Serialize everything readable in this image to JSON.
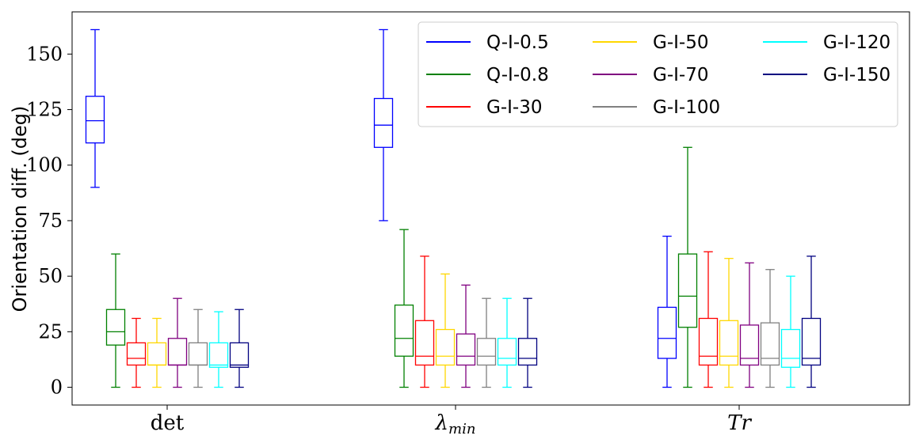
{
  "chart_data": {
    "type": "boxplot",
    "ylabel": "Orientation diff. (deg)",
    "ylim": [
      -8,
      169
    ],
    "yticks": [
      0,
      25,
      50,
      75,
      100,
      125,
      150
    ],
    "groups": [
      {
        "key": "det",
        "label": "det",
        "italic": false,
        "sub": ""
      },
      {
        "key": "lmin",
        "label": "λ",
        "italic": true,
        "sub": "min"
      },
      {
        "key": "tr",
        "label": "Tr",
        "italic": true,
        "sub": ""
      }
    ],
    "series": [
      {
        "name": "Q-I-0.5",
        "color": "#0000ff",
        "boxes": [
          {
            "whislo": 90,
            "q1": 110,
            "med": 120,
            "q3": 131,
            "whishi": 161
          },
          {
            "whislo": 75,
            "q1": 108,
            "med": 118,
            "q3": 130,
            "whishi": 161
          },
          {
            "whislo": 0,
            "q1": 13,
            "med": 22,
            "q3": 36,
            "whishi": 68
          }
        ]
      },
      {
        "name": "Q-I-0.8",
        "color": "#008000",
        "boxes": [
          {
            "whislo": 0,
            "q1": 19,
            "med": 25,
            "q3": 35,
            "whishi": 60
          },
          {
            "whislo": 0,
            "q1": 14,
            "med": 22,
            "q3": 37,
            "whishi": 71
          },
          {
            "whislo": 0,
            "q1": 27,
            "med": 41,
            "q3": 60,
            "whishi": 108
          }
        ]
      },
      {
        "name": "G-I-30",
        "color": "#ff0000",
        "boxes": [
          {
            "whislo": 0,
            "q1": 10,
            "med": 13,
            "q3": 20,
            "whishi": 31
          },
          {
            "whislo": 0,
            "q1": 10,
            "med": 14,
            "q3": 30,
            "whishi": 59
          },
          {
            "whislo": 0,
            "q1": 10,
            "med": 14,
            "q3": 31,
            "whishi": 61
          }
        ]
      },
      {
        "name": "G-I-50",
        "color": "#ffd700",
        "boxes": [
          {
            "whislo": 0,
            "q1": 10,
            "med": 10,
            "q3": 20,
            "whishi": 31
          },
          {
            "whislo": 0,
            "q1": 10,
            "med": 14,
            "q3": 26,
            "whishi": 51
          },
          {
            "whislo": 0,
            "q1": 10,
            "med": 14,
            "q3": 30,
            "whishi": 58
          }
        ]
      },
      {
        "name": "G-I-70",
        "color": "#800080",
        "boxes": [
          {
            "whislo": 0,
            "q1": 10,
            "med": 10,
            "q3": 22,
            "whishi": 40
          },
          {
            "whislo": 0,
            "q1": 10,
            "med": 14,
            "q3": 24,
            "whishi": 46
          },
          {
            "whislo": 0,
            "q1": 10,
            "med": 13,
            "q3": 28,
            "whishi": 56
          }
        ]
      },
      {
        "name": "G-I-100",
        "color": "#808080",
        "boxes": [
          {
            "whislo": 0,
            "q1": 10,
            "med": 10,
            "q3": 20,
            "whishi": 35
          },
          {
            "whislo": 0,
            "q1": 10,
            "med": 14,
            "q3": 22,
            "whishi": 40
          },
          {
            "whislo": 0,
            "q1": 10,
            "med": 13,
            "q3": 29,
            "whishi": 53
          }
        ]
      },
      {
        "name": "G-I-120",
        "color": "#00ffff",
        "boxes": [
          {
            "whislo": 0,
            "q1": 9,
            "med": 10,
            "q3": 20,
            "whishi": 34
          },
          {
            "whislo": 0,
            "q1": 10,
            "med": 13,
            "q3": 22,
            "whishi": 40
          },
          {
            "whislo": 0,
            "q1": 9,
            "med": 13,
            "q3": 26,
            "whishi": 50
          }
        ]
      },
      {
        "name": "G-I-150",
        "color": "#000080",
        "boxes": [
          {
            "whislo": 0,
            "q1": 9,
            "med": 10,
            "q3": 20,
            "whishi": 35
          },
          {
            "whislo": 0,
            "q1": 10,
            "med": 13,
            "q3": 22,
            "whishi": 40
          },
          {
            "whislo": 0,
            "q1": 10,
            "med": 13,
            "q3": 31,
            "whishi": 59
          }
        ]
      }
    ],
    "legend": {
      "location": "top-right",
      "columns": 3
    }
  }
}
